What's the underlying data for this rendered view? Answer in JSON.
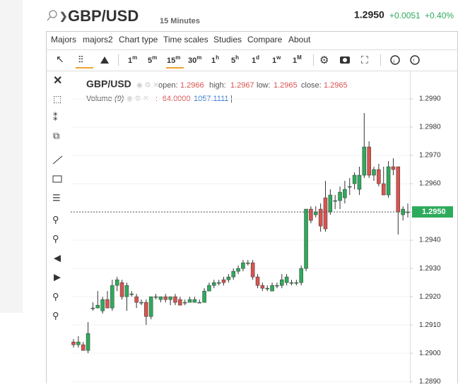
{
  "header": {
    "symbol": "GBP/USD",
    "interval": "15 Minutes",
    "price": "1.2950",
    "change": "+0.0051",
    "change_pct": "+0.40%"
  },
  "menu": [
    "Majors",
    "majors2",
    "Chart type",
    "Time scales",
    "Studies",
    "Compare",
    "About"
  ],
  "periods": [
    {
      "n": "1",
      "u": "m"
    },
    {
      "n": "5",
      "u": "m"
    },
    {
      "n": "15",
      "u": "m"
    },
    {
      "n": "30",
      "u": "m"
    },
    {
      "n": "1",
      "u": "h"
    },
    {
      "n": "5",
      "u": "h"
    },
    {
      "n": "1",
      "u": "d"
    },
    {
      "n": "1",
      "u": "w"
    },
    {
      "n": "1",
      "u": "M"
    }
  ],
  "legend": {
    "symbol": "GBP/USD",
    "open_label": "open:",
    "open": "1.2966",
    "high_label": "high:",
    "high": "1.2967",
    "low_label": "low:",
    "low": "1.2965",
    "close_label": "close:",
    "close": "1.2965",
    "volume_label": "Volume",
    "volume_period": "(9)",
    "volume_a": ": -64.0000",
    "volume_b": "1057.1111",
    "volume_sep": "|"
  },
  "chart_data": {
    "type": "candlestick",
    "up_color": "#2eaa5c",
    "down_color": "#d9534f",
    "grid": true,
    "ylim": [
      1.28893,
      1.3
    ],
    "yticks": [
      {
        "value": 1.29,
        "label": "1.2900"
      },
      {
        "value": 1.291,
        "label": "1.2910"
      },
      {
        "value": 1.292,
        "label": "1.2920"
      },
      {
        "value": 1.293,
        "label": "1.2930"
      },
      {
        "value": 1.294,
        "label": "1.2940"
      },
      {
        "value": 1.295,
        "label": "1.2950"
      },
      {
        "value": 1.296,
        "label": "1.2960"
      },
      {
        "value": 1.297,
        "label": "1.2970"
      },
      {
        "value": 1.298,
        "label": "1.2980"
      },
      {
        "value": 1.299,
        "label": "1.2990"
      },
      {
        "value": 1.289,
        "label": "1.2890"
      }
    ],
    "last_price": {
      "value": 1.295,
      "label": "1.2950"
    },
    "series": {
      "open": [
        1.2904,
        1.2903,
        1.2903,
        1.2901,
        1.2916,
        1.2916,
        1.2915,
        1.2919,
        1.2916,
        1.2924,
        1.2925,
        1.292,
        1.2921,
        1.292,
        1.2918,
        1.2918,
        1.2913,
        1.292,
        1.2919,
        1.292,
        1.2919,
        1.292,
        1.2919,
        1.2918,
        1.2918,
        1.2918,
        1.2918,
        1.2918,
        1.2922,
        1.2924,
        1.2925,
        1.2926,
        1.2926,
        1.2927,
        1.2929,
        1.293,
        1.2932,
        1.2932,
        1.2927,
        1.2924,
        1.2923,
        1.2922,
        1.2924,
        1.2924,
        1.2925,
        1.2925,
        1.2925,
        1.2925,
        1.293,
        1.2951,
        1.2949,
        1.2951,
        1.2955,
        1.295,
        1.2954,
        1.2954,
        1.2955,
        1.2959,
        1.296,
        1.2958,
        1.2963,
        1.2973,
        1.2963,
        1.2965,
        1.296,
        1.2956,
        1.2966,
        1.2966,
        1.2949,
        1.295
      ],
      "high": [
        1.2905,
        1.2906,
        1.2904,
        1.2911,
        1.2918,
        1.2922,
        1.292,
        1.2922,
        1.2926,
        1.2927,
        1.2926,
        1.2925,
        1.2922,
        1.2921,
        1.2919,
        1.2919,
        1.292,
        1.2921,
        1.292,
        1.2921,
        1.292,
        1.2921,
        1.292,
        1.2919,
        1.292,
        1.292,
        1.2919,
        1.2923,
        1.2925,
        1.2926,
        1.2926,
        1.2927,
        1.2928,
        1.293,
        1.2931,
        1.2933,
        1.2933,
        1.2933,
        1.2928,
        1.2925,
        1.2924,
        1.2925,
        1.2925,
        1.2928,
        1.2928,
        1.2926,
        1.2926,
        1.2931,
        1.2951,
        1.2952,
        1.2952,
        1.2953,
        1.2961,
        1.2958,
        1.2956,
        1.2959,
        1.2961,
        1.2962,
        1.2964,
        1.2966,
        1.2985,
        1.2975,
        1.2966,
        1.2967,
        1.2966,
        1.2968,
        1.2969,
        1.2966,
        1.2952,
        1.2953
      ],
      "low": [
        1.2902,
        1.2902,
        1.2901,
        1.29,
        1.2915,
        1.2916,
        1.2914,
        1.2916,
        1.2915,
        1.2922,
        1.2919,
        1.2915,
        1.292,
        1.2916,
        1.2917,
        1.291,
        1.2912,
        1.2919,
        1.2918,
        1.2918,
        1.2917,
        1.2917,
        1.2917,
        1.2917,
        1.2918,
        1.2918,
        1.2918,
        1.2918,
        1.2922,
        1.2923,
        1.2924,
        1.2924,
        1.2925,
        1.2926,
        1.2928,
        1.2929,
        1.2931,
        1.2926,
        1.2923,
        1.2922,
        1.2922,
        1.2922,
        1.2923,
        1.2923,
        1.2924,
        1.2924,
        1.2924,
        1.2924,
        1.2929,
        1.2946,
        1.2948,
        1.2943,
        1.2943,
        1.2949,
        1.2951,
        1.2951,
        1.2953,
        1.2956,
        1.2958,
        1.2956,
        1.2962,
        1.2962,
        1.2961,
        1.2959,
        1.2956,
        1.2955,
        1.2963,
        1.2942,
        1.2947,
        1.2948
      ],
      "close": [
        1.2903,
        1.2904,
        1.2901,
        1.2907,
        1.2916,
        1.2917,
        1.2919,
        1.2916,
        1.2924,
        1.2926,
        1.292,
        1.2924,
        1.2921,
        1.2918,
        1.2918,
        1.2913,
        1.292,
        1.292,
        1.292,
        1.2919,
        1.292,
        1.2918,
        1.2917,
        1.2918,
        1.2919,
        1.2919,
        1.2918,
        1.2922,
        1.2924,
        1.2925,
        1.2925,
        1.2925,
        1.2927,
        1.2929,
        1.293,
        1.2932,
        1.2932,
        1.2927,
        1.2924,
        1.2923,
        1.2923,
        1.2924,
        1.2924,
        1.2926,
        1.2927,
        1.2925,
        1.2925,
        1.293,
        1.2951,
        1.2947,
        1.295,
        1.2945,
        1.2944,
        1.2956,
        1.2954,
        1.2957,
        1.2958,
        1.2959,
        1.2963,
        1.2963,
        1.2973,
        1.2963,
        1.2965,
        1.296,
        1.2956,
        1.2966,
        1.2965,
        1.295,
        1.2951,
        1.295
      ]
    }
  }
}
